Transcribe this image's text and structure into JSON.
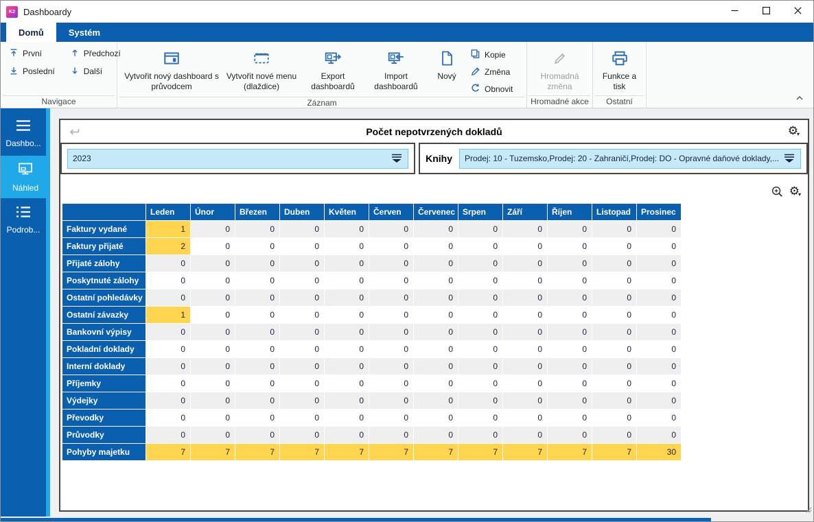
{
  "window": {
    "title": "Dashboardy",
    "logo_text": "K2"
  },
  "ribbon": {
    "tabs": [
      {
        "label": "Domů"
      },
      {
        "label": "Systém"
      }
    ],
    "nav": {
      "first": "První",
      "previous": "Předchozí",
      "last": "Poslední",
      "next": "Další",
      "group": "Navigace"
    },
    "record": {
      "new_dashboard": "Vytvořit nový dashboard s průvodcem",
      "new_menu": "Vytvořit nové menu (dlaždice)",
      "export": "Export dashboardů",
      "import": "Import dashboardů",
      "new": "Nový",
      "copy": "Kopie",
      "change": "Změna",
      "refresh": "Obnovit",
      "group": "Záznam"
    },
    "bulk": {
      "bulk_change": "Hromadná změna",
      "group": "Hromadné akce"
    },
    "other": {
      "functions_print": "Funkce a tisk",
      "group": "Ostatní"
    }
  },
  "sidebar": {
    "items": [
      {
        "label": "Dashbo...",
        "icon": "menu-icon"
      },
      {
        "label": "Náhled",
        "icon": "monitor-icon",
        "active": true
      },
      {
        "label": "Podrob...",
        "icon": "list-icon"
      }
    ]
  },
  "main": {
    "title": "Počet nepotvrzených dokladů",
    "filters": {
      "period_value": "2023",
      "books_label": "Knihy",
      "books_value": "Prodej: 10 - Tuzemsko,Prodej: 20 - Zahraničí,Prodej: DO - Opravné daňové doklady,..."
    },
    "table": {
      "months": [
        "Leden",
        "Únor",
        "Březen",
        "Duben",
        "Květen",
        "Červen",
        "Červenec",
        "Srpen",
        "Září",
        "Říjen",
        "Listopad",
        "Prosinec"
      ],
      "rows": [
        {
          "label": "Faktury vydané",
          "values": [
            1,
            0,
            0,
            0,
            0,
            0,
            0,
            0,
            0,
            0,
            0,
            0
          ]
        },
        {
          "label": "Faktury přijaté",
          "values": [
            2,
            0,
            0,
            0,
            0,
            0,
            0,
            0,
            0,
            0,
            0,
            0
          ]
        },
        {
          "label": "Přijaté zálohy",
          "values": [
            0,
            0,
            0,
            0,
            0,
            0,
            0,
            0,
            0,
            0,
            0,
            0
          ]
        },
        {
          "label": "Poskytnuté zálohy",
          "values": [
            0,
            0,
            0,
            0,
            0,
            0,
            0,
            0,
            0,
            0,
            0,
            0
          ]
        },
        {
          "label": "Ostatní pohledávky",
          "values": [
            0,
            0,
            0,
            0,
            0,
            0,
            0,
            0,
            0,
            0,
            0,
            0
          ]
        },
        {
          "label": "Ostatní závazky",
          "values": [
            1,
            0,
            0,
            0,
            0,
            0,
            0,
            0,
            0,
            0,
            0,
            0
          ]
        },
        {
          "label": "Bankovní výpisy",
          "values": [
            0,
            0,
            0,
            0,
            0,
            0,
            0,
            0,
            0,
            0,
            0,
            0
          ]
        },
        {
          "label": "Pokladní doklady",
          "values": [
            0,
            0,
            0,
            0,
            0,
            0,
            0,
            0,
            0,
            0,
            0,
            0
          ]
        },
        {
          "label": "Interní doklady",
          "values": [
            0,
            0,
            0,
            0,
            0,
            0,
            0,
            0,
            0,
            0,
            0,
            0
          ]
        },
        {
          "label": "Příjemky",
          "values": [
            0,
            0,
            0,
            0,
            0,
            0,
            0,
            0,
            0,
            0,
            0,
            0
          ]
        },
        {
          "label": "Výdejky",
          "values": [
            0,
            0,
            0,
            0,
            0,
            0,
            0,
            0,
            0,
            0,
            0,
            0
          ]
        },
        {
          "label": "Převodky",
          "values": [
            0,
            0,
            0,
            0,
            0,
            0,
            0,
            0,
            0,
            0,
            0,
            0
          ]
        },
        {
          "label": "Průvodky",
          "values": [
            0,
            0,
            0,
            0,
            0,
            0,
            0,
            0,
            0,
            0,
            0,
            0
          ]
        },
        {
          "label": "Pohyby majetku",
          "values": [
            7,
            7,
            7,
            7,
            7,
            7,
            7,
            7,
            7,
            7,
            7,
            30
          ]
        }
      ]
    }
  },
  "colors": {
    "accent_blue": "#0a5fae",
    "active_cyan": "#1fa9e8",
    "highlight_yellow": "#ffd54f"
  }
}
